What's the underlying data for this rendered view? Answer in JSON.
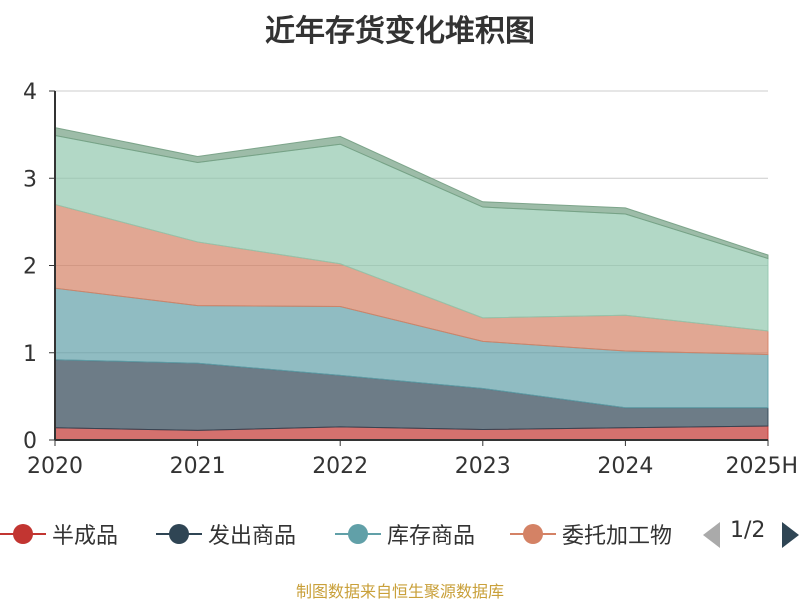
{
  "chart_data": {
    "type": "area",
    "stacked": true,
    "title": "近年存货变化堆积图",
    "categories": [
      "2020",
      "2021",
      "2022",
      "2023",
      "2024",
      "2025H"
    ],
    "ylim": [
      0,
      4
    ],
    "yticks": [
      0,
      1,
      2,
      3,
      4
    ],
    "grid": true,
    "legend_position": "bottom",
    "series": [
      {
        "name": "半成品",
        "color": "#c23531",
        "values": [
          0.14,
          0.11,
          0.15,
          0.12,
          0.14,
          0.16
        ]
      },
      {
        "name": "发出商品",
        "color": "#2f4554",
        "values": [
          0.78,
          0.77,
          0.59,
          0.47,
          0.23,
          0.21
        ]
      },
      {
        "name": "库存商品",
        "color": "#61a0a8",
        "values": [
          0.82,
          0.66,
          0.79,
          0.54,
          0.65,
          0.61
        ]
      },
      {
        "name": "委托加工物资",
        "color": "#d48265",
        "values": [
          0.96,
          0.73,
          0.49,
          0.27,
          0.41,
          0.27
        ]
      },
      {
        "name": "",
        "color": "#91c7ae",
        "values": [
          0.79,
          0.91,
          1.37,
          1.27,
          1.16,
          0.83
        ]
      },
      {
        "name": "",
        "color": "#749f83",
        "values": [
          0.09,
          0.07,
          0.09,
          0.06,
          0.07,
          0.04
        ]
      }
    ]
  },
  "legend": {
    "items": [
      {
        "label": "半成品",
        "color": "#c23531"
      },
      {
        "label": "发出商品",
        "color": "#2f4554"
      },
      {
        "label": "库存商品",
        "color": "#61a0a8"
      },
      {
        "label": "委托加工物",
        "color": "#d48265"
      }
    ],
    "page_text": "1/2"
  },
  "footer": {
    "source": "制图数据来自恒生聚源数据库"
  }
}
